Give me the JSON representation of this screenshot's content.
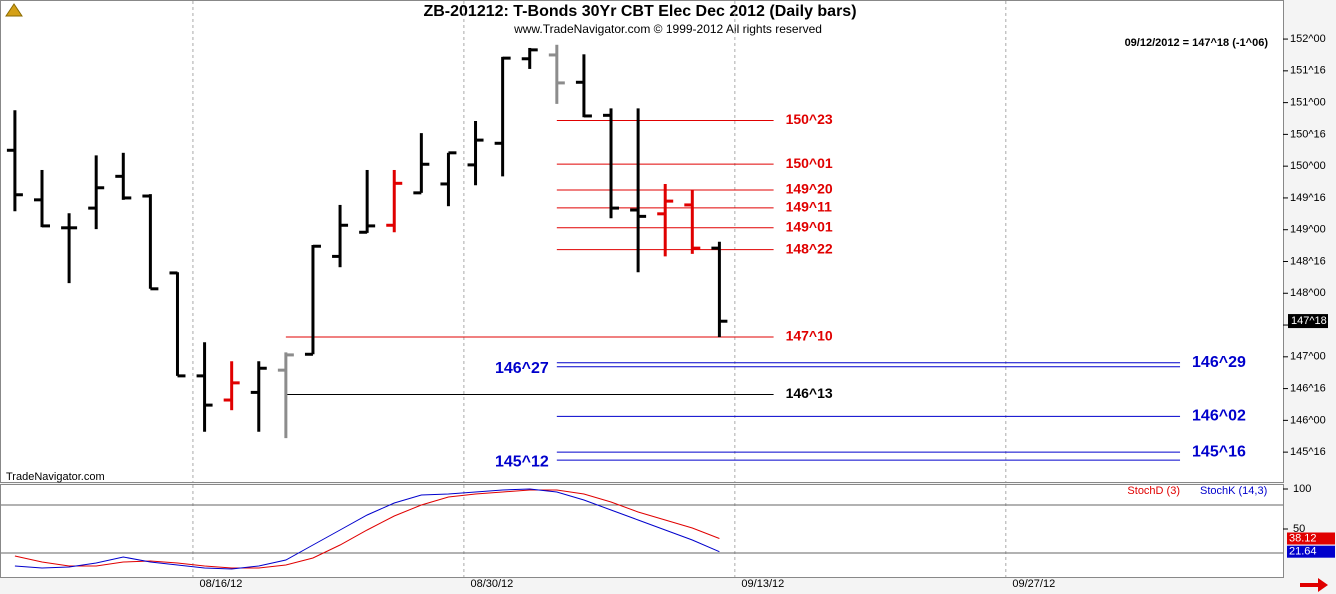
{
  "chart_data": [
    {
      "type": "ohlc",
      "title": "ZB-201212:  T-Bonds 30Yr CBT Elec Dec 2012  (Daily bars)",
      "subtitle": "www.TradeNavigator.com © 1999-2012 All rights reserved",
      "info": "09/12/2012 = 147^18 (-1^06)",
      "watermark": "TradeNavigator.com",
      "categories": [
        null,
        null,
        null,
        null,
        null,
        null,
        null,
        null,
        null,
        null,
        null,
        null,
        null,
        null,
        null,
        null,
        null,
        null,
        null,
        null,
        null,
        null,
        null,
        null,
        null,
        null,
        null
      ],
      "open": [
        150.25,
        149.47,
        149.03,
        149.34,
        149.84,
        149.53,
        148.32,
        146.7,
        146.32,
        146.44,
        146.79,
        147.04,
        148.58,
        148.96,
        149.07,
        149.58,
        149.72,
        150.02,
        150.36,
        151.69,
        151.75,
        151.32,
        150.8,
        149.31,
        149.25,
        149.39,
        148.71
      ],
      "high": [
        150.88,
        149.94,
        149.26,
        150.17,
        150.21,
        149.56,
        148.33,
        147.23,
        146.93,
        146.93,
        147.07,
        148.76,
        149.39,
        149.94,
        149.94,
        150.52,
        150.21,
        150.71,
        151.72,
        151.86,
        151.91,
        151.76,
        150.91,
        150.91,
        149.72,
        149.62,
        148.81
      ],
      "low": [
        149.29,
        149.04,
        148.16,
        149.01,
        149.47,
        148.07,
        146.7,
        145.82,
        146.16,
        145.82,
        145.72,
        147.04,
        148.41,
        148.95,
        148.96,
        149.58,
        149.37,
        149.7,
        149.84,
        151.53,
        150.98,
        150.77,
        149.18,
        148.33,
        148.58,
        148.62,
        147.31
      ],
      "close": [
        149.55,
        149.06,
        149.03,
        149.66,
        149.5,
        148.07,
        146.7,
        146.24,
        146.59,
        146.82,
        147.03,
        148.74,
        149.07,
        149.06,
        149.73,
        150.03,
        150.21,
        150.41,
        151.7,
        151.83,
        151.31,
        150.79,
        149.34,
        149.21,
        149.45,
        148.71,
        147.56
      ],
      "colors": [
        "#000000",
        "#000000",
        "#000000",
        "#000000",
        "#000000",
        "#000000",
        "#000000",
        "#000000",
        "#e00000",
        "#000000",
        "#8c8c8c",
        "#000000",
        "#000000",
        "#000000",
        "#e00000",
        "#000000",
        "#000000",
        "#000000",
        "#000000",
        "#000000",
        "#8c8c8c",
        "#000000",
        "#000000",
        "#000000",
        "#e00000",
        "#e00000",
        "#000000"
      ],
      "xlim": [
        -0.55,
        46.8
      ],
      "ylim": [
        145.03,
        152.3
      ],
      "yticks": [
        {
          "value": 152,
          "label": "152^00"
        },
        {
          "value": 151.5,
          "label": "151^16"
        },
        {
          "value": 151,
          "label": "151^00"
        },
        {
          "value": 150.5,
          "label": "150^16"
        },
        {
          "value": 150,
          "label": "150^00"
        },
        {
          "value": 149.5,
          "label": "149^16"
        },
        {
          "value": 149,
          "label": "149^00"
        },
        {
          "value": 148.5,
          "label": "148^16"
        },
        {
          "value": 148,
          "label": "148^00"
        },
        {
          "value": 147.5,
          "label": "147^16"
        },
        {
          "value": 147,
          "label": "147^00"
        },
        {
          "value": 146.5,
          "label": "146^16"
        },
        {
          "value": 146,
          "label": "146^00"
        },
        {
          "value": 145.5,
          "label": "145^16"
        }
      ],
      "levels": [
        {
          "value": 150.71875,
          "label": "150^23",
          "color": "#e00000",
          "start": 20,
          "end": 28,
          "side": "right"
        },
        {
          "value": 150.03125,
          "label": "150^01",
          "color": "#e00000",
          "start": 20,
          "end": 28,
          "side": "right"
        },
        {
          "value": 149.625,
          "label": "149^20",
          "color": "#e00000",
          "start": 20,
          "end": 28,
          "side": "right"
        },
        {
          "value": 149.34375,
          "label": "149^11",
          "color": "#e00000",
          "start": 20,
          "end": 28,
          "side": "right"
        },
        {
          "value": 149.03125,
          "label": "149^01",
          "color": "#e00000",
          "start": 20,
          "end": 28,
          "side": "right"
        },
        {
          "value": 148.6875,
          "label": "148^22",
          "color": "#e00000",
          "start": 20,
          "end": 28,
          "side": "right"
        },
        {
          "value": 147.3125,
          "label": "147^10",
          "color": "#e00000",
          "start": 10,
          "end": 28,
          "side": "right"
        },
        {
          "value": 146.40625,
          "label": "146^13",
          "color": "#000000",
          "start": 10,
          "end": 28,
          "side": "right"
        },
        {
          "value": 146.90625,
          "label": "146^29",
          "color": "#0000cc",
          "start": 20,
          "end": 43,
          "side": "right"
        },
        {
          "value": 146.84375,
          "label": "146^27",
          "color": "#0000cc",
          "start": 20,
          "end": 43,
          "side": "left"
        },
        {
          "value": 146.0625,
          "label": "146^02",
          "color": "#0000cc",
          "start": 20,
          "end": 43,
          "side": "right"
        },
        {
          "value": 145.5,
          "label": "145^16",
          "color": "#0000cc",
          "start": 20,
          "end": 43,
          "side": "right"
        },
        {
          "value": 145.375,
          "label": "145^12",
          "color": "#0000cc",
          "start": 20,
          "end": 43,
          "side": "left"
        }
      ],
      "last": {
        "value": 147.5625,
        "label": "147^18"
      },
      "grid": "x"
    },
    {
      "type": "line",
      "series": [
        {
          "name": "StochD (3)",
          "color": "#e00000",
          "values": [
            16.25,
            8.75,
            3.75,
            3.75,
            8.75,
            10,
            7.5,
            3.75,
            1.25,
            1.25,
            5,
            13.75,
            30,
            48.75,
            66.25,
            80,
            90,
            93.75,
            96.25,
            98.75,
            98.75,
            93.75,
            83.75,
            71.25,
            61.25,
            51.25,
            38.12
          ]
        },
        {
          "name": "StochK (14,3)",
          "color": "#0000cc",
          "values": [
            3.75,
            1.25,
            2.5,
            7.5,
            15,
            8.75,
            5,
            1.25,
            0,
            3.75,
            11.25,
            30,
            48.75,
            67.5,
            82.5,
            92.5,
            93.75,
            96.25,
            98.75,
            100,
            96.25,
            86.25,
            73.75,
            61.25,
            48.75,
            36.25,
            21.64
          ]
        }
      ],
      "xlim": [
        -0.55,
        46.8
      ],
      "xticks": [
        {
          "value": 6.57,
          "label": "08/16/12"
        },
        {
          "value": 16.57,
          "label": "08/30/12"
        },
        {
          "value": 26.57,
          "label": "09/13/12"
        },
        {
          "value": 36.57,
          "label": "09/27/12"
        }
      ],
      "ylim": [
        -10,
        105
      ],
      "yticks": [
        100,
        50
      ],
      "levels": [
        80,
        20
      ],
      "grid": "x"
    }
  ]
}
